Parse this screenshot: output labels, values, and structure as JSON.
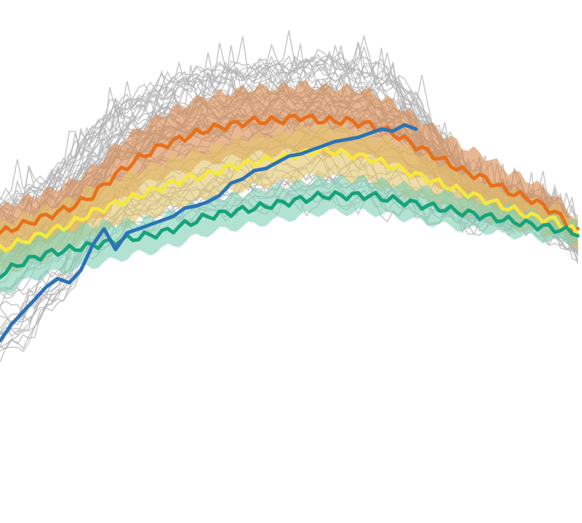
{
  "chart_data": {
    "type": "line",
    "grid": false,
    "legend": "none",
    "axes_visible": false,
    "xlim": [
      0,
      100
    ],
    "ylim": [
      0,
      100
    ],
    "x": [
      0,
      4,
      8,
      12,
      16,
      20,
      24,
      28,
      32,
      36,
      40,
      44,
      48,
      52,
      56,
      60,
      64,
      68,
      72,
      76,
      80,
      84,
      88,
      92,
      96,
      100
    ],
    "background_lines": {
      "count": 60,
      "color": "#b4b4b4",
      "y_range": {
        "low": [
          20,
          24,
          30,
          37,
          45,
          50,
          52,
          53,
          54,
          55,
          56,
          56.5,
          57,
          57.5,
          58,
          57.5,
          57,
          56,
          55,
          54.5,
          54,
          53.5,
          53,
          52.5,
          51,
          46
        ],
        "high": [
          60,
          62,
          65,
          70,
          77,
          82,
          85,
          88,
          90,
          91,
          92,
          92,
          93,
          93,
          94,
          93,
          92,
          90,
          84,
          76,
          68,
          64,
          62,
          61,
          59,
          52
        ]
      }
    },
    "series": [
      {
        "color": "#e8701a",
        "band_color": "#d9884d",
        "values": [
          52,
          54,
          56,
          58,
          61,
          66,
          70,
          73,
          75,
          77,
          78,
          79,
          79,
          80,
          79,
          79,
          78,
          76,
          73,
          70,
          67,
          65,
          62,
          60,
          57,
          52
        ],
        "band_width": [
          6,
          6,
          6,
          6,
          6.5,
          7,
          7,
          7.5,
          8,
          8,
          8,
          8,
          8,
          8,
          8,
          8,
          8,
          7.5,
          7,
          6.5,
          6,
          5.5,
          5,
          4.5,
          4,
          3
        ]
      },
      {
        "color": "#f5e83e",
        "band_color": "#e2c46a",
        "values": [
          48,
          50,
          52,
          54,
          57,
          59,
          61,
          63,
          65,
          66,
          68,
          69,
          70,
          71,
          72,
          71,
          70,
          68,
          66,
          64,
          62,
          60,
          58,
          56,
          55,
          52
        ],
        "band_width": [
          6,
          6,
          6,
          6,
          6,
          6,
          6,
          6,
          6,
          6,
          6,
          6,
          6,
          6,
          6,
          6,
          6,
          6,
          5.5,
          5,
          5,
          4.5,
          4,
          4,
          3.5,
          3
        ]
      },
      {
        "color": "#16a37c",
        "band_color": "#7ecfb4",
        "values": [
          42,
          45,
          47,
          48,
          49,
          50,
          51,
          52,
          54,
          56,
          57,
          58,
          59,
          60,
          61,
          61,
          61,
          60,
          59,
          58,
          57,
          56,
          55,
          54,
          53,
          52
        ],
        "band_width": [
          5,
          5,
          5,
          5,
          5,
          4.5,
          4,
          4,
          4,
          4,
          4,
          4,
          4,
          4,
          4,
          4,
          4,
          4,
          4,
          4,
          4,
          3.5,
          3.5,
          3,
          3,
          2
        ]
      },
      {
        "color": "#2b73b6",
        "x": [
          0,
          2,
          4,
          6,
          8,
          10,
          12,
          14,
          16,
          18,
          20,
          22,
          24,
          26,
          28,
          30,
          32,
          34,
          36,
          38,
          40,
          42,
          44,
          46,
          48,
          50,
          52,
          54,
          56,
          58,
          60,
          62,
          64,
          66,
          68,
          70,
          72
        ],
        "values": [
          26,
          30,
          33,
          36,
          39,
          41,
          40,
          43,
          49,
          53,
          48,
          52,
          53,
          54,
          55,
          56,
          58,
          58.5,
          59.5,
          61,
          64,
          65,
          67,
          67.5,
          69,
          70.5,
          71,
          72,
          73,
          74,
          74.5,
          75,
          76,
          77,
          76.5,
          78,
          77
        ]
      }
    ]
  }
}
